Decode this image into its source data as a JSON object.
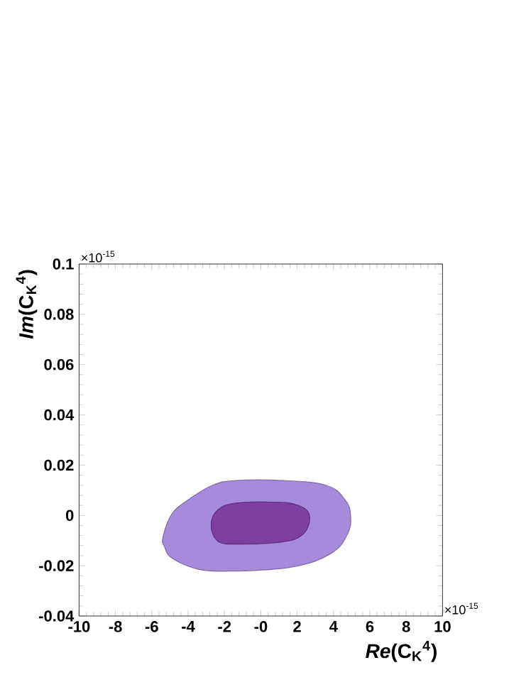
{
  "chart_data": {
    "type": "area",
    "xlabel": "*Re*(C$_{K}$$^{4}$)",
    "ylabel": "*Im*(C$_{K}$$^{4}$)",
    "annotations": [
      "×10$^{-15}$",
      "×10$^{-15}$"
    ],
    "series": [
      {
        "color": "#a78bdb",
        "x": [
          -1.35,
          1.77,
          3.84,
          4.75,
          4.94,
          4.62,
          3.58,
          1.25,
          -1.35,
          -2.65,
          -3.95,
          -4.9,
          -5.38,
          -5.3,
          -4.86,
          -3.43,
          -1.8
        ],
        "values": [
          -0.0221,
          -0.0204,
          -0.0152,
          -0.0077,
          -0.0002,
          0.0064,
          0.012,
          0.0139,
          0.0139,
          0.012,
          0.0064,
          0.0005,
          -0.0086,
          -0.0124,
          -0.0171,
          -0.0214,
          -0.0221
        ]
      },
      {
        "color": "#7d40a2",
        "x": [
          -1.35,
          0.99,
          2.29,
          2.68,
          2.03,
          0.73,
          -1.35,
          -2.39,
          -2.73,
          -2.39,
          -1.6
        ],
        "values": [
          -0.0114,
          -0.0107,
          -0.0077,
          -0.0002,
          0.0041,
          0.0053,
          0.0049,
          0.0021,
          -0.0039,
          -0.0101,
          -0.0114
        ]
      }
    ],
    "xlim": [
      -10,
      10
    ],
    "ylim": [
      -0.04,
      0.1
    ],
    "xticks": [
      -10,
      -8,
      -6,
      -4,
      -2,
      {
        "value": 0,
        "label": "-0"
      },
      2,
      4,
      6,
      8,
      10
    ],
    "yticks": [
      -0.04,
      -0.02,
      0,
      0.02,
      0.04,
      0.06,
      0.08,
      0.1
    ],
    "grid": false
  }
}
